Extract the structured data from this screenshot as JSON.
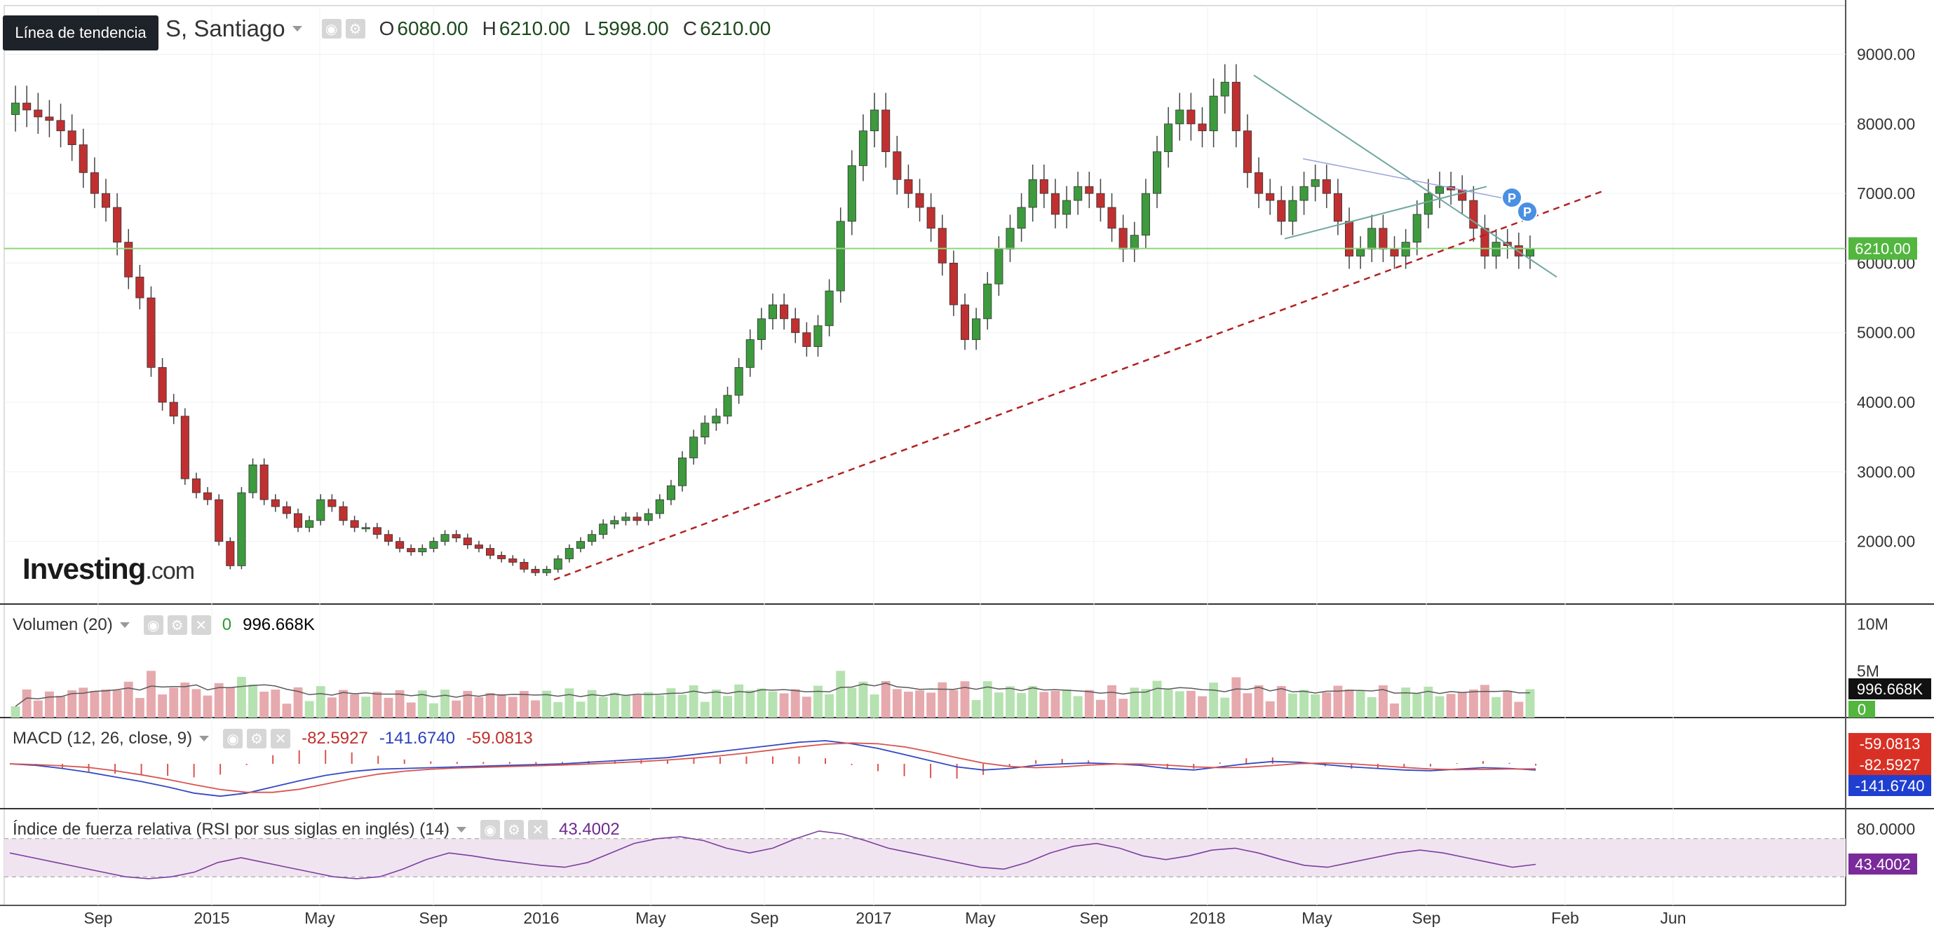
{
  "header": {
    "tooltip": "Línea de tendencia",
    "symbol": "S, Santiago",
    "ohlc": [
      {
        "key": "O",
        "value": "6080.00"
      },
      {
        "key": "H",
        "value": "6210.00"
      },
      {
        "key": "L",
        "value": "5998.00"
      },
      {
        "key": "C",
        "value": "6210.00"
      }
    ]
  },
  "logo": {
    "main": "Investing",
    "suffix": ".com"
  },
  "volume_panel": {
    "name": "Volumen (20)",
    "value1": "0",
    "value2": "996.668K"
  },
  "macd_panel": {
    "name": "MACD (12, 26, close, 9)",
    "v1": "-82.5927",
    "v2": "-141.6740",
    "v3": "-59.0813"
  },
  "rsi_panel": {
    "name": "Índice de fuerza relativa (RSI por sus siglas en inglés) (14)",
    "value": "43.4002"
  },
  "colors": {
    "up": "#3d9a3d",
    "down": "#c03030",
    "up_vol": "#b5e2b0",
    "down_vol": "#e6a9ad",
    "grid": "#eef0f3",
    "trend": "#b22222",
    "macd": "#3349c4",
    "signal": "#d9544f",
    "rsi": "#7b3f9e",
    "rsi_band": "#f1e4f1",
    "price_line": "#8cd67a"
  },
  "chart_data": [
    {
      "type": "candlestick",
      "title": "",
      "x_ticks": [
        "Sep",
        "2015",
        "May",
        "Sep",
        "2016",
        "May",
        "Sep",
        "2017",
        "May",
        "Sep",
        "2018",
        "May",
        "Sep",
        "Feb",
        "Jun"
      ],
      "y_ticks": [
        "9000.00",
        "8000.00",
        "7000.00",
        "6000.00",
        "5000.00",
        "4000.00",
        "3000.00",
        "2000.00"
      ],
      "ylim": [
        1100,
        9700
      ],
      "last_price_label": "6210.00",
      "close_series": [
        8300,
        8200,
        8100,
        8050,
        7900,
        7700,
        7300,
        7000,
        6800,
        6300,
        5800,
        5500,
        4500,
        4000,
        3800,
        2900,
        2700,
        2600,
        2000,
        1650,
        2700,
        3100,
        2600,
        2500,
        2400,
        2200,
        2300,
        2600,
        2500,
        2300,
        2200,
        2200,
        2100,
        2000,
        1900,
        1850,
        1900,
        2000,
        2100,
        2050,
        1950,
        1900,
        1800,
        1750,
        1700,
        1600,
        1550,
        1600,
        1750,
        1900,
        2000,
        2100,
        2250,
        2300,
        2350,
        2300,
        2400,
        2600,
        2800,
        3200,
        3500,
        3700,
        3800,
        4100,
        4500,
        4900,
        5200,
        5400,
        5200,
        5000,
        4800,
        5100,
        5600,
        6600,
        7400,
        7900,
        8200,
        7600,
        7200,
        7000,
        6800,
        6500,
        6000,
        5400,
        4900,
        5200,
        5700,
        6200,
        6500,
        6800,
        7200,
        7000,
        6700,
        6900,
        7100,
        7000,
        6800,
        6500,
        6200,
        6400,
        7000,
        7600,
        8000,
        8200,
        8000,
        7900,
        8400,
        8600,
        7900,
        7300,
        7000,
        6900,
        6600,
        6900,
        7100,
        7200,
        7000,
        6600,
        6100,
        6200,
        6500,
        6200,
        6100,
        6300,
        6700,
        7000,
        7100,
        7050,
        6900,
        6500,
        6100,
        6300,
        6250,
        6100,
        6210
      ],
      "trendline": {
        "style": "dashed",
        "from": {
          "x": "2016-01",
          "y": 1450
        },
        "to": {
          "x": "2019-01",
          "y": 7050
        }
      }
    },
    {
      "type": "bar",
      "title": "Volumen (20)",
      "y_ticks": [
        "10M",
        "5M"
      ],
      "ylim": [
        0,
        10500000
      ],
      "last_value_label": "996.668K",
      "zero_label": "0"
    },
    {
      "type": "line",
      "title": "MACD (12, 26, close, 9)",
      "series": [
        {
          "name": "-82.5927",
          "values": [
            0,
            -20,
            -60,
            -110,
            -170,
            -230,
            -300,
            -380,
            -420,
            -380,
            -300,
            -220,
            -150,
            -100,
            -70,
            -60,
            -50,
            -40,
            -30,
            -20,
            -10,
            0,
            20,
            40,
            60,
            80,
            120,
            160,
            200,
            240,
            280,
            300,
            260,
            200,
            120,
            40,
            -40,
            -80,
            -60,
            -20,
            0,
            10,
            0,
            -20,
            -60,
            -80,
            -40,
            0,
            30,
            20,
            -10,
            -40,
            -60,
            -80,
            -90,
            -70,
            -50,
            -60,
            -80
          ]
        }
      ],
      "value_labels": [
        "-59.0813",
        "-82.5927",
        "-141.6740"
      ]
    },
    {
      "type": "line",
      "title": "Índice de fuerza relativa (RSI por sus siglas en inglés) (14)",
      "y_ticks": [
        "80.0000"
      ],
      "ylim": [
        0,
        100
      ],
      "series": [
        {
          "name": "43.4002",
          "values": [
            55,
            50,
            45,
            40,
            35,
            30,
            28,
            30,
            35,
            45,
            50,
            45,
            40,
            35,
            30,
            28,
            30,
            38,
            48,
            55,
            52,
            48,
            45,
            42,
            40,
            45,
            55,
            65,
            70,
            72,
            68,
            60,
            55,
            60,
            70,
            78,
            75,
            68,
            60,
            55,
            50,
            45,
            40,
            38,
            45,
            55,
            62,
            65,
            60,
            52,
            48,
            52,
            58,
            60,
            55,
            48,
            42,
            40,
            45,
            50,
            55,
            58,
            55,
            50,
            45,
            40,
            43
          ]
        }
      ],
      "value_label": "43.4002"
    }
  ]
}
